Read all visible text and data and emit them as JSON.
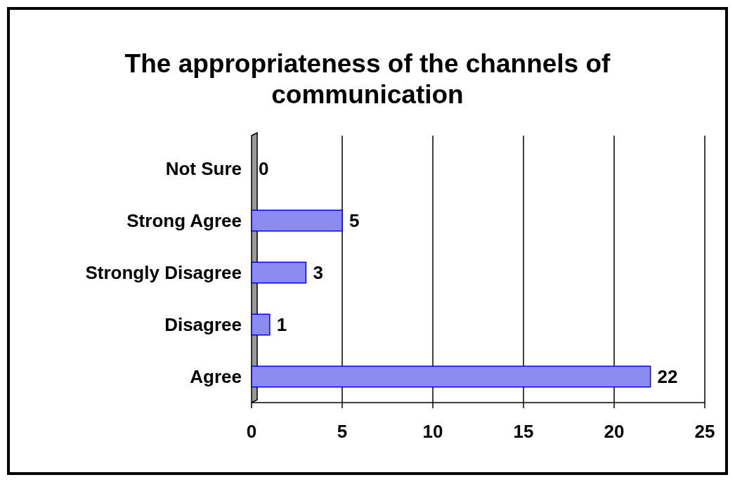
{
  "chart_data": {
    "type": "bar",
    "title": "The appropriateness of the channels of communication",
    "orientation": "horizontal",
    "categories": [
      "Not Sure",
      "Strong Agree",
      "Strongly Disagree",
      "Disagree",
      "Agree"
    ],
    "values": [
      0,
      5,
      3,
      1,
      22
    ],
    "color": "#8c8cf0",
    "xlim": [
      0,
      25
    ],
    "xticks": [
      0,
      5,
      10,
      15,
      20,
      25
    ],
    "grid": "x",
    "data_labels": true
  }
}
